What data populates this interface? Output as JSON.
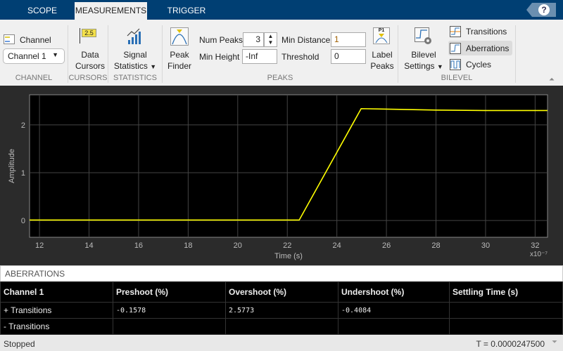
{
  "tabs": [
    {
      "label": "SCOPE"
    },
    {
      "label": "MEASUREMENTS",
      "active": true
    },
    {
      "label": "TRIGGER"
    }
  ],
  "help_icon": "question-mark",
  "channel": {
    "label": "Channel",
    "value": "Channel 1",
    "group": "CHANNEL"
  },
  "cursors": {
    "label1": "Data",
    "label2": "Cursors",
    "icon_text": "2.5",
    "group": "CURSORS"
  },
  "statistics": {
    "label1": "Signal",
    "label2": "Statistics",
    "group": "STATISTICS"
  },
  "peaks": {
    "finder1": "Peak",
    "finder2": "Finder",
    "num_peaks_label": "Num Peaks",
    "num_peaks": "3",
    "min_height_label": "Min Height",
    "min_height": "-Inf",
    "min_distance_label": "Min Distance",
    "min_distance": "1",
    "threshold_label": "Threshold",
    "threshold": "0",
    "label1": "Label",
    "label2": "Peaks",
    "label_icon_text": "P1",
    "group": "PEAKS"
  },
  "bilevel": {
    "settings1": "Bilevel",
    "settings2": "Settings",
    "transitions": "Transitions",
    "aberrations": "Aberrations",
    "cycles": "Cycles",
    "group": "BILEVEL",
    "selected": "Aberrations"
  },
  "chart_data": {
    "type": "line",
    "xlabel": "Time (s)",
    "ylabel": "Amplitude",
    "x_exponent": "x10⁻⁷",
    "xlim": [
      11.6,
      32.5
    ],
    "ylim": [
      -0.35,
      2.63
    ],
    "xticks": [
      12,
      14,
      16,
      18,
      20,
      22,
      24,
      26,
      28,
      30,
      32
    ],
    "yticks": [
      0,
      1,
      2
    ],
    "grid": true,
    "line_color": "#ffff00",
    "background": "#000000",
    "series": [
      {
        "x": [
          11.6,
          22.48,
          24.98,
          26,
          28,
          30,
          32.5
        ],
        "y": [
          0.01,
          0.01,
          2.34,
          2.33,
          2.31,
          2.3,
          2.3
        ]
      }
    ]
  },
  "aberrations": {
    "title": "ABERRATIONS",
    "columns": [
      "Channel 1",
      "Preshoot (%)",
      "Overshoot (%)",
      "Undershoot (%)",
      "Settling Time (s)"
    ],
    "rows": [
      [
        "+ Transitions",
        "-0.1578",
        "2.5773",
        "-0.4084",
        ""
      ],
      [
        "- Transitions",
        "",
        "",
        "",
        ""
      ]
    ]
  },
  "status": {
    "state": "Stopped",
    "time": "T = 0.0000247500"
  }
}
